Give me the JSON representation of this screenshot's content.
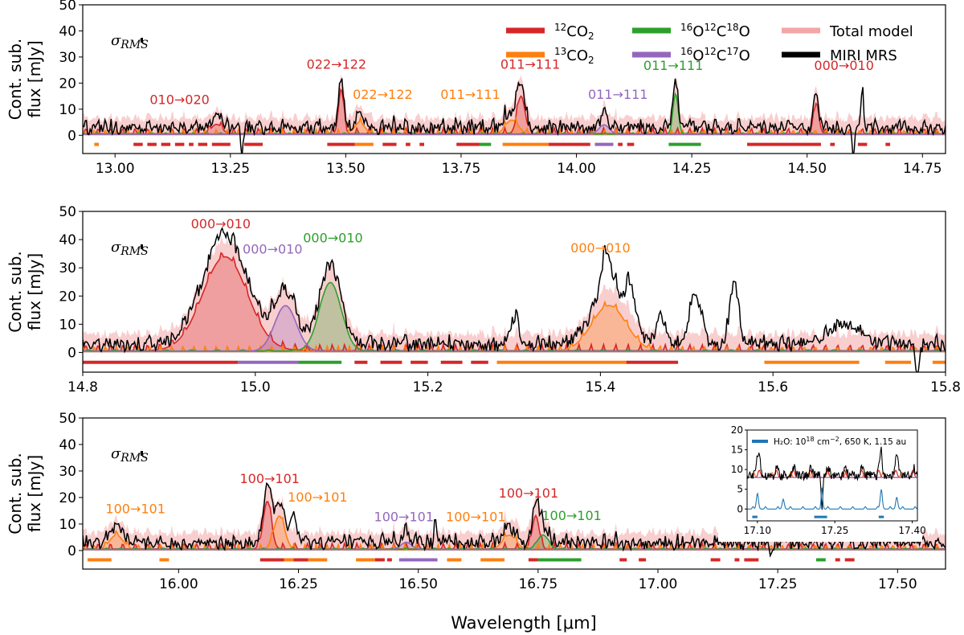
{
  "chart_data": [
    {
      "type": "line",
      "title": "",
      "xlabel": "",
      "ylabel": "Cont. sub. flux [mJy]",
      "ylabel_lines": [
        "Cont. sub.",
        "flux [mJy]"
      ],
      "xlim": [
        12.93,
        14.8
      ],
      "ylim": [
        -7,
        50
      ],
      "xticks": [
        13.0,
        13.25,
        13.5,
        13.75,
        14.0,
        14.25,
        14.5,
        14.75
      ],
      "xtick_labels": [
        "13.00",
        "13.25",
        "13.50",
        "13.75",
        "14.00",
        "14.25",
        "14.50",
        "14.75"
      ],
      "yticks": [
        0,
        10,
        20,
        30,
        40,
        50
      ],
      "ytick_labels": [
        "0",
        "10",
        "20",
        "30",
        "40",
        "50"
      ],
      "sigma_label": "σ",
      "sigma_sub": "RMS",
      "features": [
        {
          "label": "010→020",
          "x": 13.14,
          "y": 12,
          "species": "12CO2",
          "center": 13.22,
          "amp": 4,
          "width": 0.008
        },
        {
          "label": "022→122",
          "x": 13.48,
          "y": 25.5,
          "species": "12CO2",
          "center": 13.49,
          "amp": 19,
          "width": 0.004
        },
        {
          "label": "022→122",
          "x": 13.58,
          "y": 14,
          "species": "13CO2",
          "center": 13.53,
          "amp": 5,
          "width": 0.008
        },
        {
          "label": "011→111",
          "x": 13.77,
          "y": 14,
          "species": "13CO2",
          "center": 13.86,
          "amp": 6,
          "width": 0.01
        },
        {
          "label": "011→111",
          "x": 13.9,
          "y": 25.5,
          "species": "12CO2",
          "center": 13.88,
          "amp": 16,
          "width": 0.006
        },
        {
          "label": "011→111",
          "x": 14.09,
          "y": 14,
          "species": "16O12C17O",
          "center": 14.06,
          "amp": 4,
          "width": 0.008
        },
        {
          "label": "011→111",
          "x": 14.21,
          "y": 25,
          "species": "16O12C18O",
          "center": 14.215,
          "amp": 17,
          "width": 0.004
        },
        {
          "label": "000→010",
          "x": 14.58,
          "y": 25,
          "species": "12CO2",
          "center": 14.52,
          "amp": 13,
          "width": 0.004
        }
      ],
      "extra_peaks": [
        {
          "center": 14.62,
          "amp": 13,
          "width": 0.003
        }
      ],
      "absorptions": [
        {
          "center": 13.275,
          "depth": 10,
          "width": 0.002
        },
        {
          "center": 14.6,
          "depth": 11,
          "width": 0.002
        }
      ],
      "bars": [
        {
          "species": "13CO2",
          "from": 12.955,
          "to": 12.965
        },
        {
          "species": "12CO2",
          "from": 13.04,
          "to": 13.06
        },
        {
          "species": "12CO2",
          "from": 13.07,
          "to": 13.09
        },
        {
          "species": "12CO2",
          "from": 13.1,
          "to": 13.12
        },
        {
          "species": "12CO2",
          "from": 13.13,
          "to": 13.15
        },
        {
          "species": "12CO2",
          "from": 13.16,
          "to": 13.17
        },
        {
          "species": "12CO2",
          "from": 13.18,
          "to": 13.2
        },
        {
          "species": "12CO2",
          "from": 13.21,
          "to": 13.25
        },
        {
          "species": "12CO2",
          "from": 13.28,
          "to": 13.32
        },
        {
          "species": "12CO2",
          "from": 13.46,
          "to": 13.52
        },
        {
          "species": "13CO2",
          "from": 13.52,
          "to": 13.56
        },
        {
          "species": "12CO2",
          "from": 13.58,
          "to": 13.61
        },
        {
          "species": "12CO2",
          "from": 13.63,
          "to": 13.64
        },
        {
          "species": "12CO2",
          "from": 13.66,
          "to": 13.67
        },
        {
          "species": "12CO2",
          "from": 13.74,
          "to": 13.79
        },
        {
          "species": "16O12C18O",
          "from": 13.79,
          "to": 13.815
        },
        {
          "species": "13CO2",
          "from": 13.84,
          "to": 13.94
        },
        {
          "species": "12CO2",
          "from": 13.94,
          "to": 14.03
        },
        {
          "species": "16O12C17O",
          "from": 14.04,
          "to": 14.08
        },
        {
          "species": "12CO2",
          "from": 14.09,
          "to": 14.1
        },
        {
          "species": "12CO2",
          "from": 14.11,
          "to": 14.125
        },
        {
          "species": "16O12C18O",
          "from": 14.2,
          "to": 14.27
        },
        {
          "species": "12CO2",
          "from": 14.37,
          "to": 14.53
        },
        {
          "species": "12CO2",
          "from": 14.55,
          "to": 14.56
        },
        {
          "species": "12CO2",
          "from": 14.61,
          "to": 14.63
        },
        {
          "species": "12CO2",
          "from": 14.67,
          "to": 14.68
        }
      ],
      "bar_y": -3.5
    },
    {
      "type": "line",
      "title": "",
      "xlabel": "",
      "ylabel": "Cont. sub. flux [mJy]",
      "ylabel_lines": [
        "Cont. sub.",
        "flux [mJy]"
      ],
      "xlim": [
        14.8,
        15.8
      ],
      "ylim": [
        -7,
        50
      ],
      "xticks": [
        14.8,
        15.0,
        15.2,
        15.4,
        15.6,
        15.8
      ],
      "xtick_labels": [
        "14.8",
        "15.0",
        "15.2",
        "15.4",
        "15.6",
        "15.8"
      ],
      "yticks": [
        0,
        10,
        20,
        30,
        40,
        50
      ],
      "ytick_labels": [
        "0",
        "10",
        "20",
        "30",
        "40",
        "50"
      ],
      "sigma_label": "σ",
      "sigma_sub": "RMS",
      "features": [
        {
          "label": "000→010",
          "x": 14.96,
          "y": 44,
          "species": "12CO2",
          "center": 14.965,
          "amp": 37,
          "width": 0.026
        },
        {
          "label": "000→010",
          "x": 15.02,
          "y": 35,
          "species": "16O12C17O",
          "center": 15.035,
          "amp": 18,
          "width": 0.009
        },
        {
          "label": "000→010",
          "x": 15.09,
          "y": 39,
          "species": "16O12C18O",
          "center": 15.087,
          "amp": 27,
          "width": 0.009
        },
        {
          "label": "000→010",
          "x": 15.4,
          "y": 35.5,
          "species": "13CO2",
          "center": 15.41,
          "amp": 18,
          "width": 0.02
        }
      ],
      "extra_peaks": [
        {
          "center": 15.407,
          "amp": 14,
          "width": 0.006
        },
        {
          "center": 15.435,
          "amp": 13,
          "width": 0.006
        },
        {
          "center": 15.47,
          "amp": 9,
          "width": 0.005
        },
        {
          "center": 15.51,
          "amp": 17,
          "width": 0.007
        },
        {
          "center": 15.555,
          "amp": 22,
          "width": 0.005
        },
        {
          "center": 15.3,
          "amp": 10,
          "width": 0.005
        },
        {
          "center": 15.68,
          "amp": 7,
          "width": 0.02
        }
      ],
      "absorptions": [
        {
          "center": 15.767,
          "depth": 12,
          "width": 0.002
        }
      ],
      "bars": [
        {
          "species": "12CO2",
          "from": 14.8,
          "to": 14.98
        },
        {
          "species": "16O12C17O",
          "from": 14.98,
          "to": 15.05
        },
        {
          "species": "16O12C18O",
          "from": 15.05,
          "to": 15.1
        },
        {
          "species": "12CO2",
          "from": 15.115,
          "to": 15.13
        },
        {
          "species": "12CO2",
          "from": 15.145,
          "to": 15.17
        },
        {
          "species": "12CO2",
          "from": 15.18,
          "to": 15.2
        },
        {
          "species": "12CO2",
          "from": 15.215,
          "to": 15.24
        },
        {
          "species": "12CO2",
          "from": 15.25,
          "to": 15.27
        },
        {
          "species": "13CO2",
          "from": 15.28,
          "to": 15.43
        },
        {
          "species": "12CO2",
          "from": 15.43,
          "to": 15.49
        },
        {
          "species": "13CO2",
          "from": 15.59,
          "to": 15.7
        },
        {
          "species": "13CO2",
          "from": 15.73,
          "to": 15.76
        },
        {
          "species": "13CO2",
          "from": 15.785,
          "to": 15.8
        }
      ],
      "bar_y": -3.5
    },
    {
      "type": "line",
      "title": "",
      "xlabel": "Wavelength [μm]",
      "ylabel": "Cont. sub. flux [mJy]",
      "ylabel_lines": [
        "Cont. sub.",
        "flux [mJy]"
      ],
      "xlim": [
        15.8,
        17.6
      ],
      "ylim": [
        -7,
        50
      ],
      "xticks": [
        16.0,
        16.25,
        16.5,
        16.75,
        17.0,
        17.25,
        17.5
      ],
      "xtick_labels": [
        "16.00",
        "16.25",
        "16.50",
        "16.75",
        "17.00",
        "17.25",
        "17.50"
      ],
      "yticks": [
        0,
        10,
        20,
        30,
        40,
        50
      ],
      "ytick_labels": [
        "0",
        "10",
        "20",
        "30",
        "40",
        "50"
      ],
      "sigma_label": "σ",
      "sigma_sub": "RMS",
      "features": [
        {
          "label": "100→101",
          "x": 15.91,
          "y": 14,
          "species": "13CO2",
          "center": 15.87,
          "amp": 6,
          "width": 0.01
        },
        {
          "label": "100→101",
          "x": 16.19,
          "y": 25.5,
          "species": "12CO2",
          "center": 16.185,
          "amp": 20,
          "width": 0.006
        },
        {
          "label": "100→101",
          "x": 16.29,
          "y": 18.5,
          "species": "13CO2",
          "center": 16.21,
          "amp": 14,
          "width": 0.008
        },
        {
          "label": "100→101",
          "x": 16.47,
          "y": 11,
          "species": "16O12C17O",
          "center": 16.475,
          "amp": 3,
          "width": 0.008
        },
        {
          "label": "100→101",
          "x": 16.62,
          "y": 11,
          "species": "13CO2",
          "center": 16.69,
          "amp": 6,
          "width": 0.01
        },
        {
          "label": "100→101",
          "x": 16.73,
          "y": 20,
          "species": "12CO2",
          "center": 16.745,
          "amp": 14,
          "width": 0.005
        },
        {
          "label": "100→101",
          "x": 16.82,
          "y": 11.5,
          "species": "16O12C18O",
          "center": 16.76,
          "amp": 6,
          "width": 0.008
        }
      ],
      "extra_peaks": [
        {
          "center": 16.24,
          "amp": 9,
          "width": 0.008
        },
        {
          "center": 16.535,
          "amp": 11,
          "width": 0.003
        }
      ],
      "absorptions": [
        {
          "center": 16.53,
          "depth": 6,
          "width": 0.002
        },
        {
          "center": 17.235,
          "depth": 5,
          "width": 0.002
        }
      ],
      "bars": [
        {
          "species": "13CO2",
          "from": 15.81,
          "to": 15.86
        },
        {
          "species": "13CO2",
          "from": 15.96,
          "to": 15.98
        },
        {
          "species": "12CO2",
          "from": 16.17,
          "to": 16.22
        },
        {
          "species": "13CO2",
          "from": 16.22,
          "to": 16.24
        },
        {
          "species": "12CO2",
          "from": 16.24,
          "to": 16.27
        },
        {
          "species": "13CO2",
          "from": 16.27,
          "to": 16.31
        },
        {
          "species": "13CO2",
          "from": 16.37,
          "to": 16.41
        },
        {
          "species": "12CO2",
          "from": 16.41,
          "to": 16.43
        },
        {
          "species": "12CO2",
          "from": 16.435,
          "to": 16.445
        },
        {
          "species": "16O12C17O",
          "from": 16.46,
          "to": 16.54
        },
        {
          "species": "13CO2",
          "from": 16.56,
          "to": 16.59
        },
        {
          "species": "13CO2",
          "from": 16.63,
          "to": 16.68
        },
        {
          "species": "12CO2",
          "from": 16.73,
          "to": 16.75
        },
        {
          "species": "16O12C18O",
          "from": 16.75,
          "to": 16.84
        },
        {
          "species": "12CO2",
          "from": 16.92,
          "to": 16.935
        },
        {
          "species": "12CO2",
          "from": 16.96,
          "to": 16.975
        },
        {
          "species": "12CO2",
          "from": 17.11,
          "to": 17.13
        },
        {
          "species": "12CO2",
          "from": 17.16,
          "to": 17.17
        },
        {
          "species": "12CO2",
          "from": 17.18,
          "to": 17.21
        },
        {
          "species": "16O12C18O",
          "from": 17.33,
          "to": 17.35
        },
        {
          "species": "12CO2",
          "from": 17.37,
          "to": 17.38
        },
        {
          "species": "12CO2",
          "from": 17.39,
          "to": 17.41
        }
      ],
      "bar_y": -3.5
    }
  ],
  "legend": {
    "placement": "top-right of first panel",
    "entries": [
      {
        "key": "12CO2",
        "sup": "12",
        "base": "CO",
        "sub": "2",
        "tail": "",
        "color": "#d62728"
      },
      {
        "key": "13CO2",
        "sup": "13",
        "base": "CO",
        "sub": "2",
        "tail": "",
        "color": "#ff7f0e"
      },
      {
        "key": "16O12C18O",
        "sup": "16",
        "base": "O",
        "sup2": "12",
        "base2": "C",
        "sup3": "18",
        "base3": "O",
        "color": "#2ca02c"
      },
      {
        "key": "16O12C17O",
        "sup": "16",
        "base": "O",
        "sup2": "12",
        "base2": "C",
        "sup3": "17",
        "base3": "O",
        "color": "#9467bd"
      },
      {
        "key": "total",
        "label": "Total model",
        "color": "#f4a6a6"
      },
      {
        "key": "miri",
        "label": "MIRI MRS",
        "color": "#000000"
      }
    ]
  },
  "inset": {
    "legend_label": "H₂O: 10",
    "legend_sup": "18",
    "legend_rest": " cm",
    "legend_sup2": "−2",
    "legend_tail": ", 650 K, 1.15 au",
    "xlim": [
      17.08,
      17.41
    ],
    "ylim": [
      -3,
      20
    ],
    "xticks": [
      17.1,
      17.25,
      17.4
    ],
    "xtick_labels": [
      "17.10",
      "17.25",
      "17.40"
    ],
    "yticks": [
      0,
      5,
      10,
      15,
      20
    ],
    "ytick_labels": [
      "0",
      "5",
      "10",
      "15",
      "20"
    ],
    "water_color": "#1f77b4",
    "water_peaks": [
      {
        "center": 17.1,
        "amp": 4,
        "width": 0.002
      },
      {
        "center": 17.15,
        "amp": 2.5,
        "width": 0.002
      },
      {
        "center": 17.225,
        "amp": 5.5,
        "width": 0.0015
      },
      {
        "center": 17.34,
        "amp": 5,
        "width": 0.002
      },
      {
        "center": 17.37,
        "amp": 3,
        "width": 0.002
      }
    ],
    "water_bars": [
      {
        "from": 17.09,
        "to": 17.1
      },
      {
        "from": 17.21,
        "to": 17.235
      },
      {
        "from": 17.335,
        "to": 17.345
      }
    ]
  },
  "colors": {
    "12CO2": "#d62728",
    "13CO2": "#ff7f0e",
    "16O12C18O": "#2ca02c",
    "16O12C17O": "#9467bd",
    "total": "#f4a6a6",
    "miri": "#000000"
  }
}
